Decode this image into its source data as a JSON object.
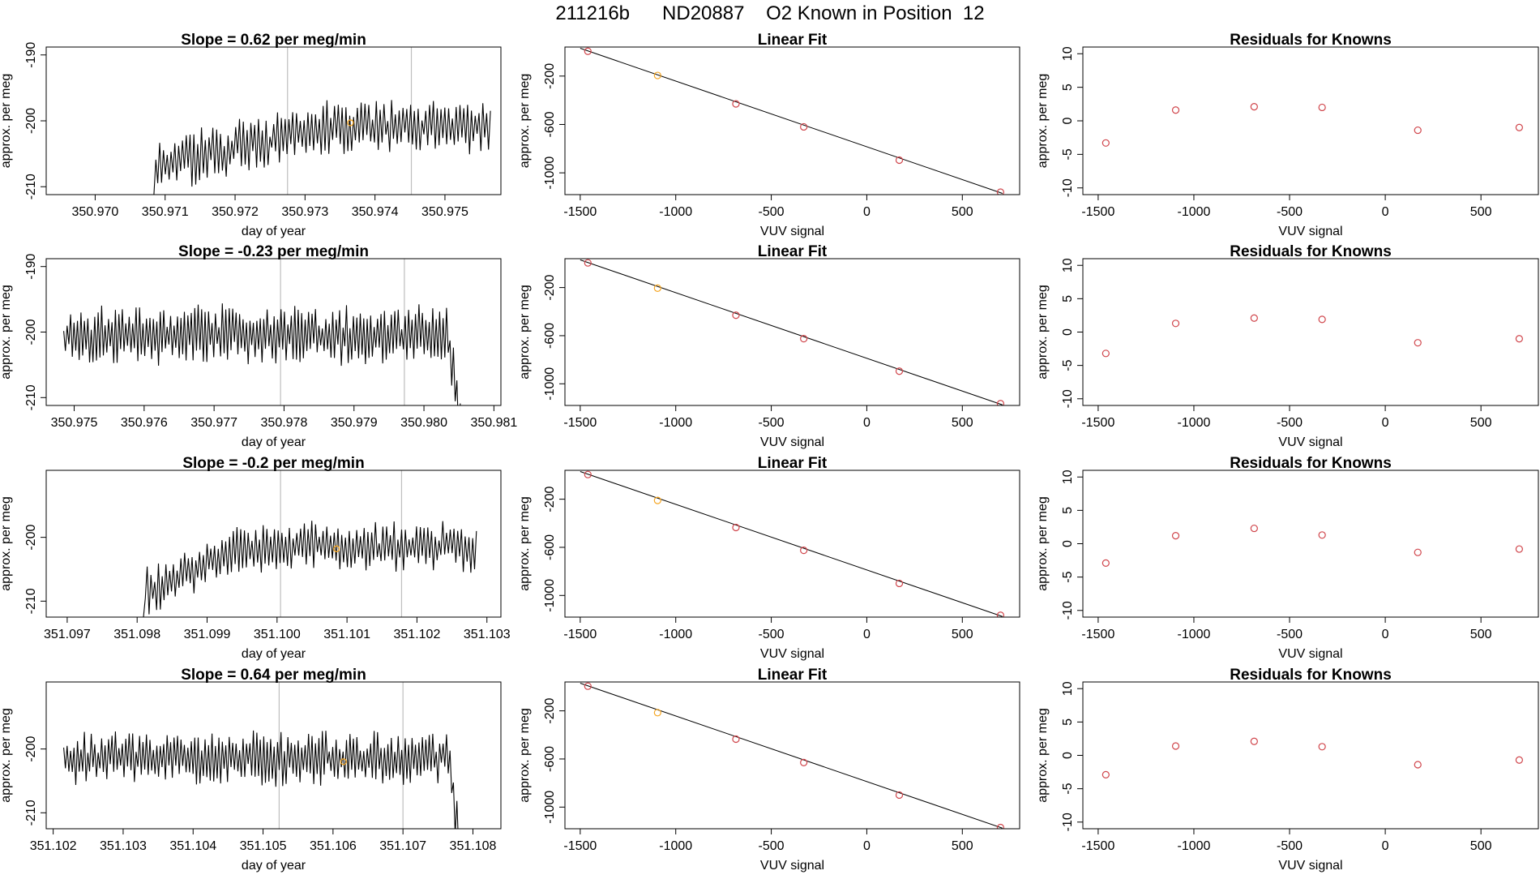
{
  "title": "211216b      ND20887    O2 Known in Position  12",
  "colors": {
    "line": "#000000",
    "guide": "#bebebe",
    "point": "#d0454b",
    "highlight": "#f5a623"
  },
  "chart_data": [
    {
      "type": "line",
      "title": "Slope =  0.62  per meg/min",
      "xlabel": "day of year",
      "ylabel": "approx. per meg",
      "xlim": [
        350.9693,
        350.9758
      ],
      "ylim": [
        -211.2,
        -188.8
      ],
      "xticks": [
        "350.970",
        "350.971",
        "350.972",
        "350.973",
        "350.974",
        "350.975"
      ],
      "xtick_values": [
        350.97,
        350.971,
        350.972,
        350.973,
        350.974,
        350.975
      ],
      "yticks": [
        "-210",
        "-200",
        "-190"
      ],
      "ytick_values": [
        -210,
        -200,
        -190
      ],
      "start_x": 350.9694,
      "end_x": 350.97565,
      "flat_until": 350.97085,
      "flat_value": -211.2,
      "rise_to": 350.9733,
      "base_low": -207,
      "base_high": -201,
      "amp": 3.2,
      "seed": 11,
      "drop_at": null,
      "guide_lines": [
        350.97275,
        350.97452
      ],
      "highlight_point": [
        350.97365,
        -200.3
      ]
    },
    {
      "type": "line",
      "title": "Slope =  -0.23  per meg/min",
      "xlabel": "day of year",
      "ylabel": "approx. per meg",
      "xlim": [
        350.9746,
        350.9811
      ],
      "ylim": [
        -211.2,
        -188.8
      ],
      "xticks": [
        "350.975",
        "350.976",
        "350.977",
        "350.978",
        "350.979",
        "350.980",
        "350.981"
      ],
      "xtick_values": [
        350.975,
        350.976,
        350.977,
        350.978,
        350.979,
        350.98,
        350.981
      ],
      "yticks": [
        "-210",
        "-200",
        "-190"
      ],
      "ytick_values": [
        -210,
        -200,
        -190
      ],
      "start_x": 350.97485,
      "end_x": 350.98052,
      "flat_until": null,
      "flat_value": null,
      "rise_to": null,
      "base_low": -200.5,
      "base_high": -200.5,
      "amp": 3.5,
      "seed": 23,
      "drop_at": 350.98035,
      "guide_lines": [
        350.97795,
        350.97972
      ],
      "highlight_point": null
    },
    {
      "type": "line",
      "title": "Slope =  -0.2  per meg/min",
      "xlabel": "day of year",
      "ylabel": "approx. per meg",
      "xlim": [
        351.0967,
        351.1032
      ],
      "ylim": [
        -212.5,
        -189.5
      ],
      "xticks": [
        "351.097",
        "351.098",
        "351.099",
        "351.100",
        "351.101",
        "351.102",
        "351.103"
      ],
      "xtick_values": [
        351.097,
        351.098,
        351.099,
        351.1,
        351.101,
        351.102,
        351.103
      ],
      "yticks": [
        "-210",
        "-200"
      ],
      "ytick_values": [
        -210,
        -200
      ],
      "start_x": 351.0967,
      "end_x": 351.10285,
      "flat_until": 351.0981,
      "flat_value": -212.5,
      "rise_to": 351.0995,
      "base_low": -209,
      "base_high": -201.5,
      "amp": 3.0,
      "seed": 37,
      "drop_at": null,
      "guide_lines": [
        351.10005,
        351.10178
      ],
      "highlight_point": [
        351.10085,
        -201.8
      ]
    },
    {
      "type": "line",
      "title": "Slope =  0.64  per meg/min",
      "xlabel": "day of year",
      "ylabel": "approx. per meg",
      "xlim": [
        351.1019,
        351.1084
      ],
      "ylim": [
        -212.5,
        -189.5
      ],
      "xticks": [
        "351.102",
        "351.103",
        "351.104",
        "351.105",
        "351.106",
        "351.107",
        "351.108"
      ],
      "xtick_values": [
        351.102,
        351.103,
        351.104,
        351.105,
        351.106,
        351.107,
        351.108
      ],
      "yticks": [
        "-210",
        "-200"
      ],
      "ytick_values": [
        -210,
        -200
      ],
      "start_x": 351.10215,
      "end_x": 351.10782,
      "flat_until": null,
      "flat_value": null,
      "rise_to": null,
      "base_low": -201.5,
      "base_high": -201.5,
      "amp": 3.3,
      "seed": 53,
      "drop_at": 351.10765,
      "guide_lines": [
        351.10523,
        351.107
      ],
      "highlight_point": [
        351.10615,
        -202
      ]
    },
    {
      "type": "scatter",
      "title": "Linear Fit",
      "xlabel": "VUV signal",
      "ylabel": "approx. per meg",
      "xlim": [
        -1580,
        800
      ],
      "ylim": [
        -1180,
        40
      ],
      "xticks": [
        "-1500",
        "-1000",
        "-500",
        "0",
        "500"
      ],
      "xtick_values": [
        -1500,
        -1000,
        -500,
        0,
        500
      ],
      "yticks": [
        "-200",
        "-600",
        "-1000"
      ],
      "ytick_values": [
        -200,
        -600,
        -1000
      ],
      "x": [
        -1460,
        -1095,
        -685,
        -330,
        170,
        700
      ],
      "y": [
        5,
        -195,
        -430,
        -620,
        -895,
        -1160
      ],
      "fit_line": [
        [
          -1500,
          30
        ],
        [
          710,
          -1170
        ]
      ],
      "highlight_index": 1
    },
    {
      "type": "scatter",
      "title": "Linear Fit",
      "xlabel": "VUV signal",
      "ylabel": "approx. per meg",
      "xlim": [
        -1580,
        800
      ],
      "ylim": [
        -1180,
        40
      ],
      "xticks": [
        "-1500",
        "-1000",
        "-500",
        "0",
        "500"
      ],
      "xtick_values": [
        -1500,
        -1000,
        -500,
        0,
        500
      ],
      "yticks": [
        "-200",
        "-600",
        "-1000"
      ],
      "ytick_values": [
        -200,
        -600,
        -1000
      ],
      "x": [
        -1460,
        -1095,
        -685,
        -330,
        170,
        700
      ],
      "y": [
        5,
        -205,
        -430,
        -625,
        -895,
        -1165
      ],
      "fit_line": [
        [
          -1500,
          30
        ],
        [
          710,
          -1175
        ]
      ],
      "highlight_index": 1
    },
    {
      "type": "scatter",
      "title": "Linear Fit",
      "xlabel": "VUV signal",
      "ylabel": "approx. per meg",
      "xlim": [
        -1580,
        800
      ],
      "ylim": [
        -1180,
        40
      ],
      "xticks": [
        "-1500",
        "-1000",
        "-500",
        "0",
        "500"
      ],
      "xtick_values": [
        -1500,
        -1000,
        -500,
        0,
        500
      ],
      "yticks": [
        "-200",
        "-600",
        "-1000"
      ],
      "ytick_values": [
        -200,
        -600,
        -1000
      ],
      "x": [
        -1460,
        -1095,
        -685,
        -330,
        170,
        700
      ],
      "y": [
        5,
        -210,
        -435,
        -625,
        -900,
        -1165
      ],
      "fit_line": [
        [
          -1500,
          30
        ],
        [
          710,
          -1175
        ]
      ],
      "highlight_index": 1
    },
    {
      "type": "scatter",
      "title": "Linear Fit",
      "xlabel": "VUV signal",
      "ylabel": "approx. per meg",
      "xlim": [
        -1580,
        800
      ],
      "ylim": [
        -1180,
        40
      ],
      "xticks": [
        "-1500",
        "-1000",
        "-500",
        "0",
        "500"
      ],
      "xtick_values": [
        -1500,
        -1000,
        -500,
        0,
        500
      ],
      "yticks": [
        "-200",
        "-600",
        "-1000"
      ],
      "ytick_values": [
        -200,
        -600,
        -1000
      ],
      "x": [
        -1460,
        -1095,
        -685,
        -330,
        170,
        700
      ],
      "y": [
        5,
        -215,
        -435,
        -630,
        -900,
        -1170
      ],
      "fit_line": [
        [
          -1500,
          30
        ],
        [
          710,
          -1175
        ]
      ],
      "highlight_index": 1
    },
    {
      "type": "scatter",
      "title": "Residuals for Knowns",
      "xlabel": "VUV signal",
      "ylabel": "approx. per meg",
      "xlim": [
        -1580,
        800
      ],
      "ylim": [
        -11,
        11
      ],
      "xticks": [
        "-1500",
        "-1000",
        "-500",
        "0",
        "500"
      ],
      "xtick_values": [
        -1500,
        -1000,
        -500,
        0,
        500
      ],
      "yticks": [
        "-10",
        "-5",
        "0",
        "5",
        "10"
      ],
      "ytick_values": [
        -10,
        -5,
        0,
        5,
        10
      ],
      "x": [
        -1460,
        -1095,
        -685,
        -330,
        170,
        700
      ],
      "y": [
        -3.3,
        1.6,
        2.1,
        2.0,
        -1.4,
        -1.0
      ]
    },
    {
      "type": "scatter",
      "title": "Residuals for Knowns",
      "xlabel": "VUV signal",
      "ylabel": "approx. per meg",
      "xlim": [
        -1580,
        800
      ],
      "ylim": [
        -11,
        11
      ],
      "xticks": [
        "-1500",
        "-1000",
        "-500",
        "0",
        "500"
      ],
      "xtick_values": [
        -1500,
        -1000,
        -500,
        0,
        500
      ],
      "yticks": [
        "-10",
        "-5",
        "0",
        "5",
        "10"
      ],
      "ytick_values": [
        -10,
        -5,
        0,
        5,
        10
      ],
      "x": [
        -1460,
        -1095,
        -685,
        -330,
        170,
        700
      ],
      "y": [
        -3.2,
        1.3,
        2.1,
        1.9,
        -1.6,
        -1.0
      ]
    },
    {
      "type": "scatter",
      "title": "Residuals for Knowns",
      "xlabel": "VUV signal",
      "ylabel": "approx. per meg",
      "xlim": [
        -1580,
        800
      ],
      "ylim": [
        -11,
        11
      ],
      "xticks": [
        "-1500",
        "-1000",
        "-500",
        "0",
        "500"
      ],
      "xtick_values": [
        -1500,
        -1000,
        -500,
        0,
        500
      ],
      "yticks": [
        "-10",
        "-5",
        "0",
        "5",
        "10"
      ],
      "ytick_values": [
        -10,
        -5,
        0,
        5,
        10
      ],
      "x": [
        -1460,
        -1095,
        -685,
        -330,
        170,
        700
      ],
      "y": [
        -2.9,
        1.2,
        2.3,
        1.3,
        -1.3,
        -0.8
      ]
    },
    {
      "type": "scatter",
      "title": "Residuals for Knowns",
      "xlabel": "VUV signal",
      "ylabel": "approx. per meg",
      "xlim": [
        -1580,
        800
      ],
      "ylim": [
        -11,
        11
      ],
      "xticks": [
        "-1500",
        "-1000",
        "-500",
        "0",
        "500"
      ],
      "xtick_values": [
        -1500,
        -1000,
        -500,
        0,
        500
      ],
      "yticks": [
        "-10",
        "-5",
        "0",
        "5",
        "10"
      ],
      "ytick_values": [
        -10,
        -5,
        0,
        5,
        10
      ],
      "x": [
        -1460,
        -1095,
        -685,
        -330,
        170,
        700
      ],
      "y": [
        -2.9,
        1.4,
        2.1,
        1.3,
        -1.4,
        -0.7
      ]
    }
  ]
}
